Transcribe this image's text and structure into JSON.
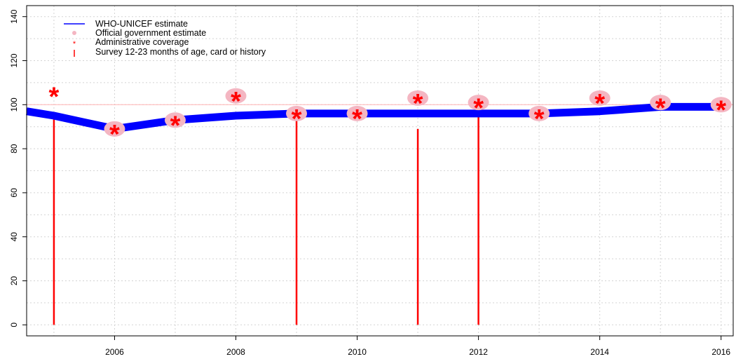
{
  "chart_data": {
    "type": "line",
    "xlim": [
      2004.55,
      2016.2
    ],
    "ylim": [
      -5,
      145
    ],
    "x_ticks": [
      2006,
      2008,
      2010,
      2012,
      2014,
      2016
    ],
    "y_ticks": [
      0,
      20,
      40,
      60,
      80,
      100,
      120,
      140
    ],
    "reference_line": 100,
    "grid": true,
    "legend_position": "top-left",
    "legend": [
      {
        "label": "WHO-UNICEF estimate",
        "marker": "line"
      },
      {
        "label": "Official government estimate",
        "marker": "dot"
      },
      {
        "label": "Administrative coverage",
        "marker": "star"
      },
      {
        "label": "Survey 12-23 months of age, card or history",
        "marker": "bar"
      }
    ],
    "series": [
      {
        "name": "WHO-UNICEF estimate",
        "color": "#0000ff",
        "points": [
          {
            "x": 2004.55,
            "y": 97
          },
          {
            "x": 2005,
            "y": 95
          },
          {
            "x": 2006,
            "y": 89
          },
          {
            "x": 2007,
            "y": 93
          },
          {
            "x": 2008,
            "y": 95
          },
          {
            "x": 2009,
            "y": 96
          },
          {
            "x": 2010,
            "y": 96
          },
          {
            "x": 2011,
            "y": 96
          },
          {
            "x": 2012,
            "y": 96
          },
          {
            "x": 2013,
            "y": 96
          },
          {
            "x": 2014,
            "y": 97
          },
          {
            "x": 2015,
            "y": 99
          },
          {
            "x": 2016,
            "y": 99
          }
        ]
      },
      {
        "name": "Official government estimate",
        "color": "#f4b6c2",
        "points": [
          {
            "x": 2006,
            "y": 89
          },
          {
            "x": 2007,
            "y": 93
          },
          {
            "x": 2008,
            "y": 104
          },
          {
            "x": 2009,
            "y": 96
          },
          {
            "x": 2010,
            "y": 96
          },
          {
            "x": 2011,
            "y": 103
          },
          {
            "x": 2012,
            "y": 101
          },
          {
            "x": 2013,
            "y": 96
          },
          {
            "x": 2014,
            "y": 103
          },
          {
            "x": 2015,
            "y": 101
          },
          {
            "x": 2016,
            "y": 100
          }
        ]
      },
      {
        "name": "Administrative coverage",
        "color": "#ff0000",
        "points": [
          {
            "x": 2005,
            "y": 105
          },
          {
            "x": 2006,
            "y": 88
          },
          {
            "x": 2007,
            "y": 92
          },
          {
            "x": 2008,
            "y": 103
          },
          {
            "x": 2009,
            "y": 95
          },
          {
            "x": 2010,
            "y": 95
          },
          {
            "x": 2011,
            "y": 102
          },
          {
            "x": 2012,
            "y": 100
          },
          {
            "x": 2013,
            "y": 95
          },
          {
            "x": 2014,
            "y": 102
          },
          {
            "x": 2015,
            "y": 100
          },
          {
            "x": 2016,
            "y": 99
          }
        ]
      },
      {
        "name": "Survey 12-23 months of age, card or history",
        "color": "#ff0000",
        "points": [
          {
            "x": 2005,
            "y": 95
          },
          {
            "x": 2009,
            "y": 96
          },
          {
            "x": 2011,
            "y": 89
          },
          {
            "x": 2012,
            "y": 97
          }
        ]
      }
    ]
  }
}
